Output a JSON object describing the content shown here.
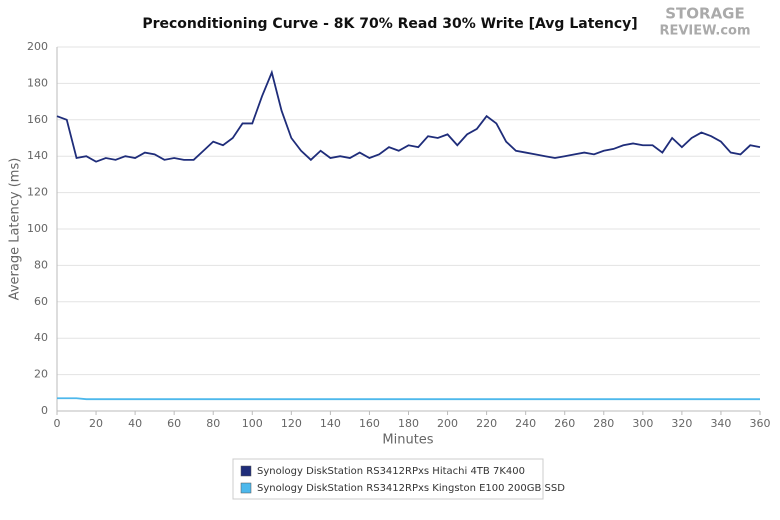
{
  "chart_data": {
    "type": "line",
    "title": "Preconditioning Curve - 8K 70% Read 30% Write [Avg Latency]",
    "watermark_lines": [
      "STORAGE",
      "REVIEW.com"
    ],
    "x_label": "Minutes",
    "y_label": "Average Latency (ms)",
    "x": [
      0,
      5,
      10,
      15,
      20,
      25,
      30,
      35,
      40,
      45,
      50,
      55,
      60,
      65,
      70,
      75,
      80,
      85,
      90,
      95,
      100,
      105,
      110,
      115,
      120,
      125,
      130,
      135,
      140,
      145,
      150,
      155,
      160,
      165,
      170,
      175,
      180,
      185,
      190,
      195,
      200,
      205,
      210,
      215,
      220,
      225,
      230,
      235,
      240,
      245,
      250,
      255,
      260,
      265,
      270,
      275,
      280,
      285,
      290,
      295,
      300,
      305,
      310,
      315,
      320,
      325,
      330,
      335,
      340,
      345,
      350,
      355,
      360
    ],
    "series": [
      {
        "name": "Synology DiskStation RS3412RPxs Hitachi 4TB 7K400",
        "color": "#1f2d7a",
        "values": [
          162,
          160,
          139,
          140,
          137,
          139,
          138,
          140,
          139,
          142,
          141,
          138,
          139,
          138,
          138,
          143,
          148,
          146,
          150,
          158,
          158,
          173,
          186,
          165,
          150,
          143,
          138,
          143,
          139,
          140,
          139,
          142,
          139,
          141,
          145,
          143,
          146,
          145,
          151,
          150,
          152,
          146,
          152,
          155,
          162,
          158,
          148,
          143,
          142,
          141,
          140,
          139,
          140,
          141,
          142,
          141,
          143,
          144,
          146,
          147,
          146,
          146,
          142,
          150,
          145,
          150,
          153,
          151,
          148,
          142,
          141,
          146,
          145
        ]
      },
      {
        "name": "Synology DiskStation RS3412RPxs Kingston E100 200GB SSD",
        "color": "#4db8ec",
        "values": [
          7,
          7,
          7,
          6.5,
          6.5,
          6.5,
          6.5,
          6.5,
          6.5,
          6.5,
          6.5,
          6.5,
          6.5,
          6.5,
          6.5,
          6.5,
          6.5,
          6.5,
          6.5,
          6.5,
          6.5,
          6.5,
          6.5,
          6.5,
          6.5,
          6.5,
          6.5,
          6.5,
          6.5,
          6.5,
          6.5,
          6.5,
          6.5,
          6.5,
          6.5,
          6.5,
          6.5,
          6.5,
          6.5,
          6.5,
          6.5,
          6.5,
          6.5,
          6.5,
          6.5,
          6.5,
          6.5,
          6.5,
          6.5,
          6.5,
          6.5,
          6.5,
          6.5,
          6.5,
          6.5,
          6.5,
          6.5,
          6.5,
          6.5,
          6.5,
          6.5,
          6.5,
          6.5,
          6.5,
          6.5,
          6.5,
          6.5,
          6.5,
          6.5,
          6.5,
          6.5,
          6.5,
          6.5
        ]
      }
    ],
    "xlim": [
      0,
      360
    ],
    "xticks": [
      0,
      20,
      40,
      60,
      80,
      100,
      120,
      140,
      160,
      180,
      200,
      220,
      240,
      260,
      280,
      300,
      320,
      340,
      360
    ],
    "ylim": [
      0,
      200
    ],
    "yticks": [
      0,
      20,
      40,
      60,
      80,
      100,
      120,
      140,
      160,
      180,
      200
    ],
    "grid": true,
    "legend": "bottom"
  }
}
